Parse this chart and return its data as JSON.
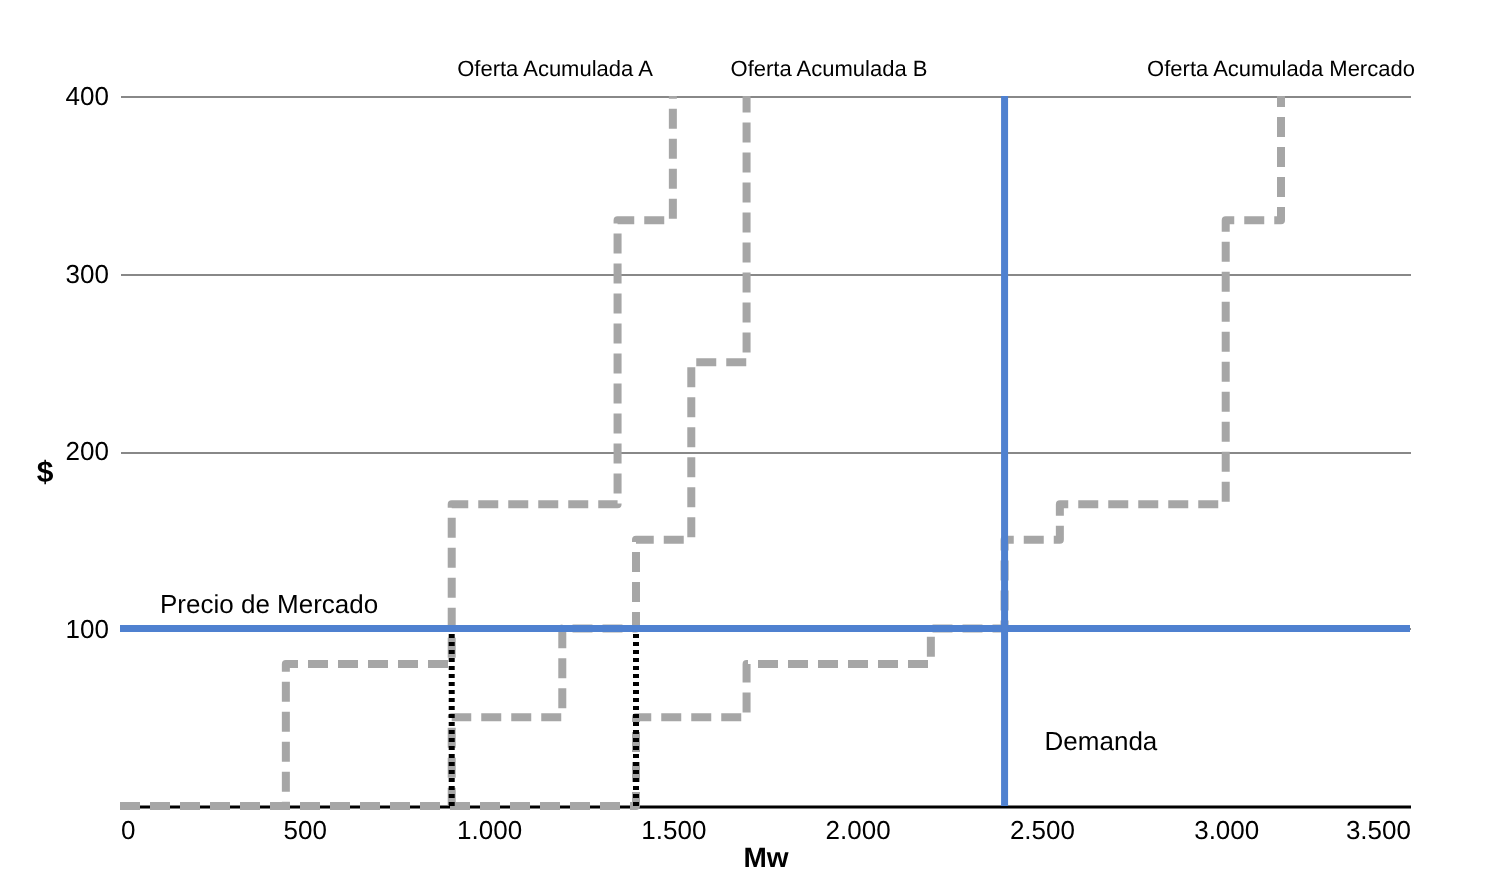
{
  "chart_data": {
    "type": "step",
    "xlabel": "Mw",
    "ylabel": "$",
    "xlim": [
      0,
      3500
    ],
    "ylim": [
      0,
      400
    ],
    "xticks": [
      0,
      {
        "value": 500,
        "label": "500"
      },
      {
        "value": 1000,
        "label": "1.000"
      },
      {
        "value": 1500,
        "label": "1.500"
      },
      {
        "value": 2000,
        "label": "2.000"
      },
      {
        "value": 2500,
        "label": "2.500"
      },
      {
        "value": 3000,
        "label": "3.000"
      },
      {
        "value": 3500,
        "label": "3.500"
      }
    ],
    "yticks": [
      100,
      200,
      300,
      400
    ],
    "grid": "y",
    "series": [
      {
        "name": "Oferta Acumulada A",
        "color": "#a6a6a6",
        "line_style": "dashed",
        "x": [
          0,
          450,
          900,
          1350,
          1500
        ],
        "values": [
          0,
          80,
          170,
          330,
          400
        ]
      },
      {
        "name": "Oferta Acumulada B",
        "color": "#a6a6a6",
        "line_style": "dashed",
        "x": [
          0,
          900,
          1200,
          1400,
          1550,
          1700
        ],
        "values": [
          0,
          50,
          100,
          150,
          250,
          400
        ]
      },
      {
        "name": "Oferta Acumulada Mercado",
        "color": "#a6a6a6",
        "line_style": "dashed",
        "x": [
          0,
          1400,
          1700,
          2200,
          2400,
          2550,
          3000,
          3150
        ],
        "values": [
          0,
          50,
          80,
          100,
          150,
          170,
          330,
          400
        ]
      },
      {
        "type": "line",
        "color": "#000000",
        "line_style": "dotted",
        "x": [
          900,
          900
        ],
        "values": [
          0,
          100
        ]
      },
      {
        "type": "line",
        "color": "#000000",
        "line_style": "dotted",
        "x": [
          1400,
          1400
        ],
        "values": [
          0,
          100
        ]
      }
    ],
    "ref_lines": [
      {
        "axis": "y",
        "value": 100,
        "label": "Precio de Mercado",
        "color": "#4f81d0"
      },
      {
        "axis": "x",
        "value": 2400,
        "label": "Demanda",
        "color": "#4f81d0"
      }
    ]
  }
}
